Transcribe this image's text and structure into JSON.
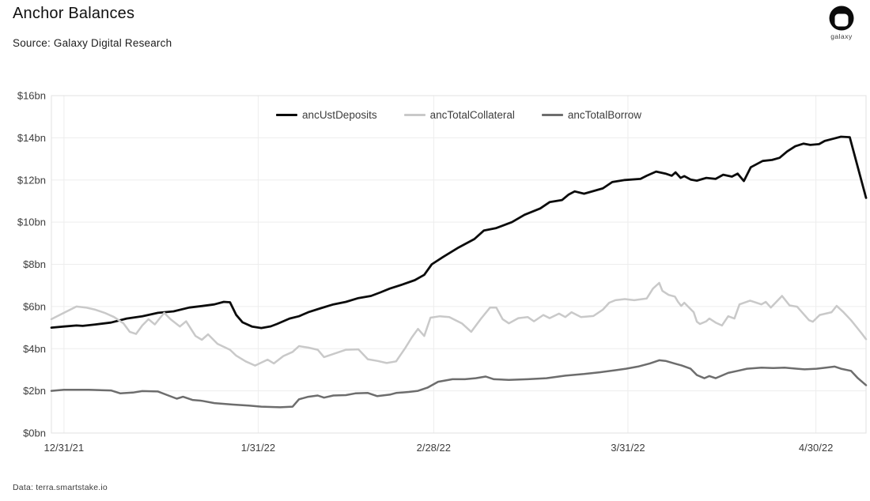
{
  "header": {
    "title": "Anchor Balances",
    "source": "Source: Galaxy Digital Research",
    "logo_word": "galaxy"
  },
  "footer": {
    "credit": "Data: terra.smartstake.io"
  },
  "chart_data": {
    "type": "line",
    "title": "Anchor Balances",
    "xlabel": "",
    "ylabel": "",
    "grid": true,
    "legend_position": "top-center",
    "style": {
      "background": "#ffffff",
      "border_color": "#e2e2e2",
      "grid_color": "#ededed",
      "tick_color": "#3d3d3d"
    },
    "x_axis": {
      "unit": "days since 12/31/21",
      "domain_days": [
        -2,
        128
      ],
      "ticks": [
        {
          "day": 0,
          "label": "12/31/21"
        },
        {
          "day": 31,
          "label": "1/31/22"
        },
        {
          "day": 59,
          "label": "2/28/22"
        },
        {
          "day": 90,
          "label": "3/31/22"
        },
        {
          "day": 120,
          "label": "4/30/22"
        }
      ]
    },
    "y_axis": {
      "range": [
        0,
        16
      ],
      "unit": "$bn",
      "ticks": [
        {
          "value": 0,
          "label": "$0bn"
        },
        {
          "value": 2,
          "label": "$2bn"
        },
        {
          "value": 4,
          "label": "$4bn"
        },
        {
          "value": 6,
          "label": "$6bn"
        },
        {
          "value": 8,
          "label": "$8bn"
        },
        {
          "value": 10,
          "label": "$10bn"
        },
        {
          "value": 12,
          "label": "$12bn"
        },
        {
          "value": 14,
          "label": "$14bn"
        },
        {
          "value": 16,
          "label": "$16bn"
        }
      ]
    },
    "series": [
      {
        "name": "ancUstDeposits",
        "color": "#0b0b0b",
        "width": 2.8,
        "points": [
          [
            -2,
            5.0
          ],
          [
            0,
            5.05
          ],
          [
            2,
            5.1
          ],
          [
            3,
            5.08
          ],
          [
            5,
            5.15
          ],
          [
            7.5,
            5.24
          ],
          [
            10,
            5.43
          ],
          [
            12.5,
            5.54
          ],
          [
            15,
            5.7
          ],
          [
            17.5,
            5.77
          ],
          [
            20,
            5.95
          ],
          [
            22,
            6.02
          ],
          [
            24,
            6.1
          ],
          [
            25.5,
            6.22
          ],
          [
            26.5,
            6.2
          ],
          [
            27.5,
            5.6
          ],
          [
            28.5,
            5.25
          ],
          [
            30,
            5.05
          ],
          [
            31.5,
            4.98
          ],
          [
            33,
            5.06
          ],
          [
            34,
            5.17
          ],
          [
            36,
            5.43
          ],
          [
            37.5,
            5.54
          ],
          [
            39,
            5.73
          ],
          [
            41,
            5.92
          ],
          [
            43,
            6.1
          ],
          [
            45,
            6.22
          ],
          [
            47,
            6.4
          ],
          [
            49,
            6.5
          ],
          [
            50.5,
            6.67
          ],
          [
            52,
            6.85
          ],
          [
            54,
            7.04
          ],
          [
            56,
            7.25
          ],
          [
            57.5,
            7.5
          ],
          [
            58.7,
            8.0
          ],
          [
            60.5,
            8.35
          ],
          [
            63,
            8.8
          ],
          [
            65.5,
            9.2
          ],
          [
            67,
            9.6
          ],
          [
            69,
            9.72
          ],
          [
            71.5,
            10.0
          ],
          [
            73.5,
            10.35
          ],
          [
            76,
            10.65
          ],
          [
            77.5,
            10.95
          ],
          [
            79.5,
            11.05
          ],
          [
            80.5,
            11.3
          ],
          [
            81.5,
            11.46
          ],
          [
            83,
            11.35
          ],
          [
            86,
            11.6
          ],
          [
            87.5,
            11.9
          ],
          [
            89.5,
            12.0
          ],
          [
            92,
            12.05
          ],
          [
            93,
            12.2
          ],
          [
            94.5,
            12.4
          ],
          [
            96,
            12.3
          ],
          [
            97,
            12.2
          ],
          [
            97.6,
            12.36
          ],
          [
            98.4,
            12.1
          ],
          [
            99,
            12.18
          ],
          [
            100,
            12.02
          ],
          [
            101,
            11.97
          ],
          [
            102.5,
            12.1
          ],
          [
            104,
            12.05
          ],
          [
            105.2,
            12.25
          ],
          [
            106.6,
            12.16
          ],
          [
            107.5,
            12.3
          ],
          [
            108.5,
            11.95
          ],
          [
            109.6,
            12.6
          ],
          [
            111.5,
            12.9
          ],
          [
            113,
            12.95
          ],
          [
            114.2,
            13.05
          ],
          [
            115.4,
            13.35
          ],
          [
            116.7,
            13.6
          ],
          [
            118,
            13.72
          ],
          [
            119.1,
            13.66
          ],
          [
            120.5,
            13.7
          ],
          [
            121.4,
            13.85
          ],
          [
            122.7,
            13.95
          ],
          [
            124,
            14.05
          ],
          [
            125.4,
            14.03
          ],
          [
            128,
            11.15
          ]
        ]
      },
      {
        "name": "ancTotalCollateral",
        "color": "#c9c9c9",
        "width": 2.5,
        "points": [
          [
            -2,
            5.4
          ],
          [
            -1,
            5.55
          ],
          [
            0,
            5.7
          ],
          [
            1,
            5.85
          ],
          [
            2,
            6.0
          ],
          [
            3.5,
            5.95
          ],
          [
            5,
            5.85
          ],
          [
            6.5,
            5.7
          ],
          [
            8,
            5.5
          ],
          [
            9.5,
            5.2
          ],
          [
            10.5,
            4.8
          ],
          [
            11.5,
            4.7
          ],
          [
            12.5,
            5.1
          ],
          [
            13.5,
            5.4
          ],
          [
            14.5,
            5.15
          ],
          [
            16,
            5.7
          ],
          [
            17,
            5.4
          ],
          [
            18.5,
            5.05
          ],
          [
            19.5,
            5.3
          ],
          [
            21,
            4.6
          ],
          [
            22,
            4.42
          ],
          [
            23,
            4.68
          ],
          [
            24.5,
            4.23
          ],
          [
            26.5,
            3.95
          ],
          [
            27.5,
            3.67
          ],
          [
            29,
            3.4
          ],
          [
            30.5,
            3.2
          ],
          [
            32.5,
            3.48
          ],
          [
            33.5,
            3.3
          ],
          [
            35,
            3.65
          ],
          [
            36.5,
            3.85
          ],
          [
            37.5,
            4.12
          ],
          [
            39,
            4.05
          ],
          [
            40.5,
            3.95
          ],
          [
            41.5,
            3.6
          ],
          [
            43,
            3.75
          ],
          [
            45,
            3.95
          ],
          [
            47,
            3.97
          ],
          [
            48.5,
            3.5
          ],
          [
            50,
            3.42
          ],
          [
            51.5,
            3.32
          ],
          [
            53,
            3.4
          ],
          [
            54.5,
            4.05
          ],
          [
            55.5,
            4.53
          ],
          [
            56.5,
            4.94
          ],
          [
            57.5,
            4.6
          ],
          [
            58.5,
            5.47
          ],
          [
            60,
            5.54
          ],
          [
            61.5,
            5.5
          ],
          [
            62.5,
            5.35
          ],
          [
            63.5,
            5.2
          ],
          [
            65,
            4.8
          ],
          [
            66.5,
            5.4
          ],
          [
            68,
            5.95
          ],
          [
            69,
            5.95
          ],
          [
            70,
            5.4
          ],
          [
            71,
            5.2
          ],
          [
            72.5,
            5.45
          ],
          [
            74,
            5.5
          ],
          [
            75,
            5.3
          ],
          [
            76.5,
            5.6
          ],
          [
            77.5,
            5.45
          ],
          [
            79,
            5.66
          ],
          [
            80,
            5.5
          ],
          [
            81,
            5.73
          ],
          [
            82.5,
            5.5
          ],
          [
            84.5,
            5.55
          ],
          [
            86,
            5.85
          ],
          [
            87,
            6.18
          ],
          [
            88,
            6.3
          ],
          [
            89.5,
            6.35
          ],
          [
            91,
            6.3
          ],
          [
            93,
            6.38
          ],
          [
            94,
            6.85
          ],
          [
            95,
            7.12
          ],
          [
            95.5,
            6.74
          ],
          [
            96.5,
            6.55
          ],
          [
            97.5,
            6.47
          ],
          [
            98,
            6.22
          ],
          [
            98.5,
            6.03
          ],
          [
            99,
            6.18
          ],
          [
            100.5,
            5.73
          ],
          [
            101,
            5.28
          ],
          [
            101.5,
            5.17
          ],
          [
            102.5,
            5.3
          ],
          [
            103,
            5.43
          ],
          [
            104,
            5.24
          ],
          [
            105,
            5.1
          ],
          [
            106,
            5.54
          ],
          [
            107,
            5.43
          ],
          [
            107.8,
            6.1
          ],
          [
            109.5,
            6.28
          ],
          [
            111.3,
            6.1
          ],
          [
            112,
            6.22
          ],
          [
            112.8,
            5.95
          ],
          [
            114.6,
            6.5
          ],
          [
            115.8,
            6.05
          ],
          [
            117,
            5.99
          ],
          [
            118.9,
            5.35
          ],
          [
            119.5,
            5.28
          ],
          [
            120.6,
            5.6
          ],
          [
            122.5,
            5.73
          ],
          [
            123.3,
            6.03
          ],
          [
            124.4,
            5.73
          ],
          [
            125.6,
            5.35
          ],
          [
            126.4,
            5.06
          ],
          [
            127.3,
            4.72
          ],
          [
            128,
            4.45
          ]
        ]
      },
      {
        "name": "ancTotalBorrow",
        "color": "#6d6d6d",
        "width": 2.5,
        "points": [
          [
            -2,
            2.0
          ],
          [
            0,
            2.05
          ],
          [
            4,
            2.05
          ],
          [
            7.5,
            2.02
          ],
          [
            9,
            1.88
          ],
          [
            11,
            1.92
          ],
          [
            12.5,
            1.99
          ],
          [
            15,
            1.97
          ],
          [
            16.5,
            1.8
          ],
          [
            18,
            1.63
          ],
          [
            19,
            1.72
          ],
          [
            20.5,
            1.57
          ],
          [
            22,
            1.53
          ],
          [
            24,
            1.42
          ],
          [
            27,
            1.35
          ],
          [
            29.5,
            1.3
          ],
          [
            31.5,
            1.25
          ],
          [
            34.5,
            1.22
          ],
          [
            36.5,
            1.25
          ],
          [
            37.5,
            1.6
          ],
          [
            39,
            1.72
          ],
          [
            40.5,
            1.78
          ],
          [
            41.5,
            1.68
          ],
          [
            43,
            1.78
          ],
          [
            45,
            1.8
          ],
          [
            46.5,
            1.88
          ],
          [
            48.5,
            1.9
          ],
          [
            50,
            1.75
          ],
          [
            52,
            1.82
          ],
          [
            53,
            1.9
          ],
          [
            55,
            1.95
          ],
          [
            56.5,
            2.0
          ],
          [
            58,
            2.15
          ],
          [
            59.7,
            2.43
          ],
          [
            62,
            2.55
          ],
          [
            64,
            2.55
          ],
          [
            65.7,
            2.6
          ],
          [
            67.3,
            2.68
          ],
          [
            68.6,
            2.55
          ],
          [
            71,
            2.52
          ],
          [
            74,
            2.55
          ],
          [
            77,
            2.6
          ],
          [
            80,
            2.72
          ],
          [
            83,
            2.8
          ],
          [
            85.5,
            2.88
          ],
          [
            88,
            2.98
          ],
          [
            89.7,
            3.05
          ],
          [
            91.6,
            3.15
          ],
          [
            93.5,
            3.3
          ],
          [
            95,
            3.45
          ],
          [
            96,
            3.42
          ],
          [
            97.4,
            3.3
          ],
          [
            98.6,
            3.2
          ],
          [
            100,
            3.05
          ],
          [
            101,
            2.75
          ],
          [
            102.2,
            2.6
          ],
          [
            103,
            2.7
          ],
          [
            104,
            2.6
          ],
          [
            106,
            2.85
          ],
          [
            107.5,
            2.95
          ],
          [
            109,
            3.05
          ],
          [
            111.3,
            3.1
          ],
          [
            113.2,
            3.08
          ],
          [
            115,
            3.1
          ],
          [
            117,
            3.05
          ],
          [
            118.2,
            3.02
          ],
          [
            120.1,
            3.05
          ],
          [
            121.6,
            3.1
          ],
          [
            123,
            3.15
          ],
          [
            124,
            3.05
          ],
          [
            125.6,
            2.95
          ],
          [
            126.7,
            2.6
          ],
          [
            128,
            2.27
          ]
        ]
      }
    ]
  }
}
